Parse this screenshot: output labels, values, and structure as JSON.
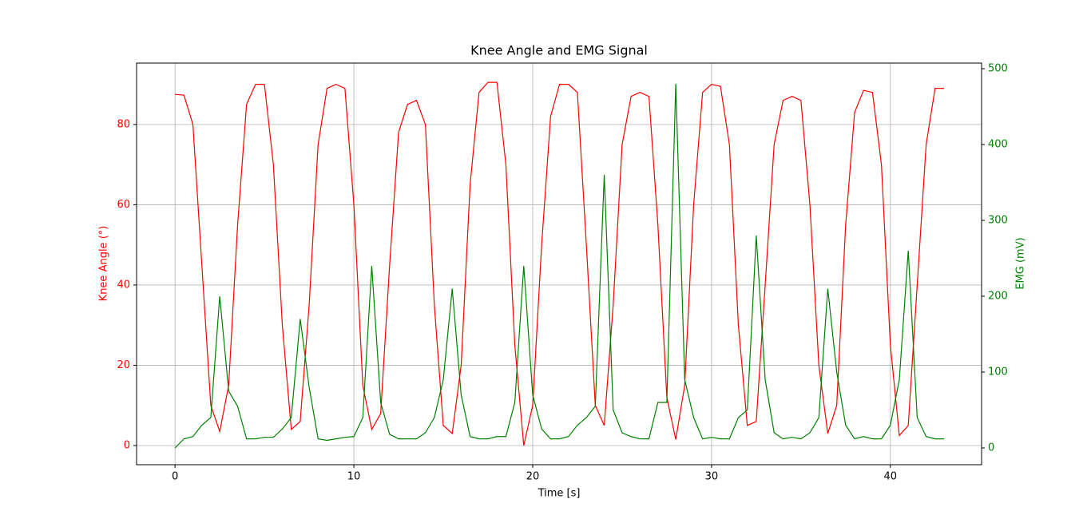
{
  "chart_data": {
    "type": "line",
    "title": "Knee Angle and EMG Signal",
    "xlabel": "Time [s]",
    "ylabel": "Knee Angle (°)",
    "y2label": "EMG (mV)",
    "x": [
      0,
      0.5,
      1,
      1.5,
      2,
      2.5,
      3,
      3.5,
      4,
      4.5,
      5,
      5.5,
      6,
      6.5,
      7,
      7.5,
      8,
      8.5,
      9,
      9.5,
      10,
      10.5,
      11,
      11.5,
      12,
      12.5,
      13,
      13.5,
      14,
      14.5,
      15,
      15.5,
      16,
      16.5,
      17,
      17.5,
      18,
      18.5,
      19,
      19.5,
      20,
      20.5,
      21,
      21.5,
      22,
      22.5,
      23,
      23.5,
      24,
      24.5,
      25,
      25.5,
      26,
      26.5,
      27,
      27.5,
      28,
      28.5,
      29,
      29.5,
      30,
      30.5,
      31,
      31.5,
      32,
      32.5,
      33,
      33.5,
      34,
      34.5,
      35,
      35.5,
      36,
      36.5,
      37,
      37.5,
      38,
      38.5,
      39,
      39.5,
      40,
      40.5,
      41,
      41.5,
      42,
      42.5,
      43
    ],
    "series": [
      {
        "name": "Knee Angle",
        "color": "#ff0000",
        "axis": "y",
        "values": [
          87.5,
          87.3,
          80,
          45,
          10,
          3.5,
          15,
          55,
          85,
          90,
          90,
          70,
          30,
          4,
          6,
          35,
          75,
          89,
          90,
          89,
          60,
          15,
          4,
          8,
          45,
          78,
          85,
          86,
          80,
          35,
          5,
          3,
          20,
          65,
          88,
          90.5,
          90.5,
          70,
          25,
          0,
          10,
          50,
          82,
          90,
          90,
          88,
          50,
          10,
          5,
          35,
          75,
          87,
          88,
          87,
          55,
          12,
          1.5,
          15,
          60,
          88,
          90,
          89.5,
          75,
          30,
          5,
          6,
          40,
          75,
          86,
          87,
          86,
          60,
          20,
          3,
          10,
          55,
          83,
          88.5,
          88,
          70,
          25,
          2.5,
          5,
          40,
          75,
          89,
          89
        ]
      },
      {
        "name": "EMG",
        "color": "#008000",
        "axis": "y2",
        "values": [
          0,
          12,
          15,
          30,
          40,
          200,
          75,
          55,
          12,
          12,
          14,
          14,
          25,
          40,
          170,
          80,
          12,
          10,
          12,
          14,
          15,
          40,
          240,
          60,
          18,
          12,
          12,
          12,
          20,
          40,
          90,
          210,
          70,
          15,
          12,
          12,
          15,
          15,
          60,
          240,
          70,
          25,
          12,
          12,
          15,
          30,
          40,
          55,
          360,
          50,
          20,
          15,
          12,
          12,
          60,
          60,
          480,
          90,
          40,
          12,
          14,
          12,
          12,
          40,
          50,
          280,
          90,
          20,
          12,
          14,
          12,
          20,
          40,
          210,
          100,
          30,
          12,
          15,
          12,
          12,
          30,
          90,
          260,
          40,
          15,
          12,
          12
        ]
      }
    ],
    "xlim": [
      -2.15,
      45.1
    ],
    "xticks": [
      0,
      10,
      20,
      30,
      40
    ],
    "ylim": [
      -4.78,
      95.3
    ],
    "yticks": [
      0,
      20,
      40,
      60,
      80
    ],
    "y2lim": [
      -22.1,
      507.4
    ],
    "y2ticks": [
      0,
      100,
      200,
      300,
      400,
      500
    ],
    "grid": true,
    "ycolor": "#ff0000",
    "y2color": "#008000"
  }
}
